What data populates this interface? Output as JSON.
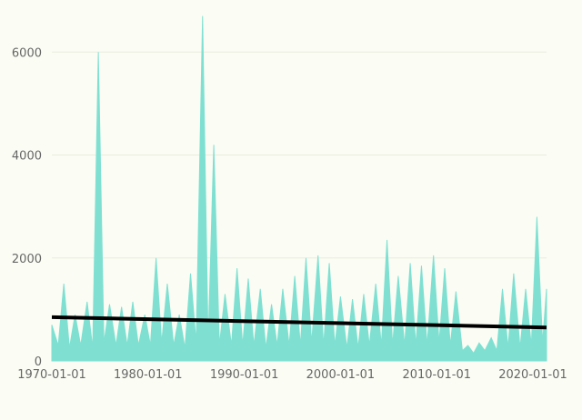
{
  "chart_data": {
    "type": "area",
    "title": "",
    "xlabel": "",
    "ylabel": "",
    "xlim": [
      "1970-01-01",
      "2021-06-01"
    ],
    "ylim": [
      0,
      6800
    ],
    "grid": "horizontal",
    "x_ticks": [
      "1970-01-01",
      "1980-01-01",
      "1990-01-01",
      "2000-01-01",
      "2010-01-01",
      "2020-01-01"
    ],
    "y_ticks": [
      0,
      2000,
      4000,
      6000
    ],
    "colors": {
      "area": "#7fe0d2",
      "trend": "#000000",
      "background": "#fbfdf4",
      "grid": "#e9ecdf",
      "text": "#666666"
    },
    "series": [
      {
        "kind": "area",
        "x": [
          "1970-01-01",
          "1970-09-01",
          "1971-04-01",
          "1971-11-01",
          "1972-06-01",
          "1973-01-01",
          "1973-09-01",
          "1974-04-01",
          "1974-11-01",
          "1975-06-01",
          "1976-01-01",
          "1976-09-01",
          "1977-04-01",
          "1977-11-01",
          "1978-06-01",
          "1979-01-01",
          "1979-09-01",
          "1980-04-01",
          "1980-11-01",
          "1981-06-01",
          "1982-01-01",
          "1982-09-01",
          "1983-04-01",
          "1983-11-01",
          "1984-06-01",
          "1985-01-01",
          "1985-09-01",
          "1986-04-01",
          "1986-11-01",
          "1987-06-01",
          "1988-01-01",
          "1988-09-01",
          "1989-04-01",
          "1989-11-01",
          "1990-06-01",
          "1991-01-01",
          "1991-09-01",
          "1992-04-01",
          "1992-11-01",
          "1993-06-01",
          "1994-01-01",
          "1994-09-01",
          "1995-04-01",
          "1995-11-01",
          "1996-06-01",
          "1997-01-01",
          "1997-09-01",
          "1998-04-01",
          "1998-11-01",
          "1999-06-01",
          "2000-01-01",
          "2000-09-01",
          "2001-04-01",
          "2001-11-01",
          "2002-06-01",
          "2003-01-01",
          "2003-09-01",
          "2004-04-01",
          "2004-11-01",
          "2005-06-01",
          "2006-01-01",
          "2006-09-01",
          "2007-04-01",
          "2007-11-01",
          "2008-06-01",
          "2009-01-01",
          "2009-09-01",
          "2010-04-01",
          "2010-11-01",
          "2011-06-01",
          "2012-01-01",
          "2012-09-01",
          "2013-04-01",
          "2013-11-01",
          "2014-06-01",
          "2015-01-01",
          "2015-09-01",
          "2016-04-01",
          "2016-11-01",
          "2017-06-01",
          "2018-01-01",
          "2018-09-01",
          "2019-04-01",
          "2019-11-01",
          "2020-06-01",
          "2021-01-01",
          "2021-06-01"
        ],
        "y": [
          700,
          300,
          1500,
          250,
          900,
          300,
          1150,
          250,
          6000,
          350,
          1100,
          300,
          1050,
          300,
          1150,
          300,
          900,
          300,
          2000,
          350,
          1500,
          300,
          900,
          250,
          1700,
          350,
          6700,
          350,
          4200,
          300,
          1300,
          300,
          1800,
          300,
          1600,
          300,
          1400,
          250,
          1100,
          300,
          1400,
          300,
          1650,
          300,
          2000,
          350,
          2050,
          300,
          1900,
          300,
          1250,
          250,
          1200,
          250,
          1300,
          300,
          1500,
          300,
          2350,
          300,
          1650,
          300,
          1900,
          300,
          1850,
          300,
          2050,
          350,
          1800,
          300,
          1350,
          200,
          300,
          150,
          350,
          200,
          450,
          200,
          1400,
          250,
          1700,
          250,
          1400,
          300,
          2800,
          350,
          1400
        ]
      },
      {
        "kind": "line",
        "name": "trend",
        "x": [
          "1970-01-01",
          "2021-06-01"
        ],
        "y": [
          850,
          650
        ]
      }
    ]
  }
}
